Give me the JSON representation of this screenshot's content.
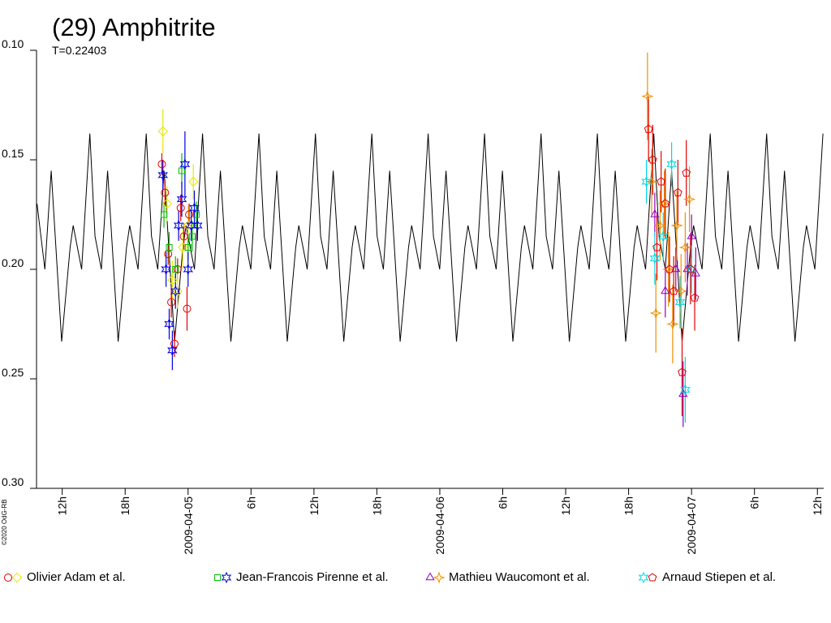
{
  "chart_data": {
    "type": "lightcurve",
    "title": "(29) Amphitrite",
    "subtitle": "T=0.22403",
    "copyright": "©2020 OdG-RB",
    "xlim": [
      -14.45,
      60.6
    ],
    "ylim": [
      0.1,
      0.3
    ],
    "y_inverted": true,
    "yticks": [
      {
        "value": 0.1,
        "label": "0.10"
      },
      0.15,
      {
        "value": 0.2,
        "label": "0.20"
      },
      0.25,
      {
        "value": 0.3,
        "label": "0.30"
      }
    ],
    "xticks": [
      {
        "value": -12,
        "label": "12h"
      },
      {
        "value": -6,
        "label": "18h"
      },
      {
        "value": 0,
        "label": "2009-04-05"
      },
      {
        "value": 6,
        "label": "6h"
      },
      {
        "value": 12,
        "label": "12h"
      },
      {
        "value": 18,
        "label": "18h"
      },
      {
        "value": 24,
        "label": "2009-04-06"
      },
      {
        "value": 30,
        "label": "6h"
      },
      {
        "value": 36,
        "label": "12h"
      },
      {
        "value": 42,
        "label": "18h"
      },
      {
        "value": 48,
        "label": "2009-04-07"
      },
      {
        "value": 54,
        "label": "6h"
      },
      {
        "value": 60,
        "label": "12h"
      }
    ],
    "model": {
      "color": "#000000",
      "x": [
        -14.4,
        -13.65,
        -13.05,
        -12.05,
        -11.25,
        -10.95,
        -10.15,
        -9.37,
        -8.87,
        -8.27,
        -7.67,
        -6.67,
        -5.87,
        -5.57,
        -4.77,
        -3.99,
        -3.49,
        -2.89,
        -2.29,
        -1.29,
        -0.49,
        -0.19,
        0.61,
        1.38,
        1.88,
        2.48,
        3.08,
        4.08,
        4.88,
        5.18,
        5.98,
        6.76,
        7.26,
        7.86,
        8.46,
        9.46,
        10.26,
        10.56,
        11.36,
        12.14,
        12.64,
        13.24,
        13.84,
        14.84,
        15.64,
        15.94,
        16.74,
        17.52,
        18.02,
        18.62,
        19.22,
        20.22,
        21.02,
        21.32,
        22.12,
        22.89,
        23.39,
        23.99,
        24.59,
        25.59,
        26.39,
        26.69,
        27.49,
        28.27,
        28.77,
        29.37,
        29.97,
        30.97,
        31.77,
        32.07,
        32.87,
        33.65,
        34.15,
        34.75,
        35.35,
        36.35,
        37.15,
        37.45,
        38.25,
        39.02,
        39.52,
        40.12,
        40.72,
        41.72,
        42.52,
        42.82,
        43.62,
        44.4,
        44.9,
        45.5,
        46.1,
        47.1,
        47.9,
        48.2,
        49.0,
        49.78,
        50.28,
        50.88,
        51.48,
        52.48,
        53.28,
        53.58,
        54.38,
        55.16,
        55.66,
        56.26,
        56.86,
        57.86,
        58.66,
        58.96,
        59.76,
        60.53
      ],
      "values": [
        0.17,
        0.2,
        0.155,
        0.233,
        0.19,
        0.18,
        0.2,
        0.138,
        0.185,
        0.2,
        0.155,
        0.233,
        0.19,
        0.18,
        0.2,
        0.138,
        0.185,
        0.2,
        0.155,
        0.233,
        0.19,
        0.18,
        0.2,
        0.138,
        0.185,
        0.2,
        0.155,
        0.233,
        0.19,
        0.18,
        0.2,
        0.138,
        0.185,
        0.2,
        0.155,
        0.233,
        0.19,
        0.18,
        0.2,
        0.138,
        0.185,
        0.2,
        0.155,
        0.233,
        0.19,
        0.18,
        0.2,
        0.138,
        0.185,
        0.2,
        0.155,
        0.233,
        0.19,
        0.18,
        0.2,
        0.138,
        0.185,
        0.2,
        0.155,
        0.233,
        0.19,
        0.18,
        0.2,
        0.138,
        0.185,
        0.2,
        0.155,
        0.233,
        0.19,
        0.18,
        0.2,
        0.138,
        0.185,
        0.2,
        0.155,
        0.233,
        0.19,
        0.18,
        0.2,
        0.138,
        0.185,
        0.2,
        0.155,
        0.233,
        0.19,
        0.18,
        0.2,
        0.138,
        0.185,
        0.2,
        0.155,
        0.233,
        0.19,
        0.18,
        0.2,
        0.138,
        0.185,
        0.2,
        0.155,
        0.233,
        0.19,
        0.18,
        0.2,
        0.138,
        0.185,
        0.2,
        0.155,
        0.233,
        0.19,
        0.18,
        0.2,
        0.138
      ]
    },
    "series": [
      {
        "name": "Olivier Adam et al.",
        "markers": [
          {
            "symbol": "circle",
            "color": "#e00000",
            "x": [
              -2.5,
              -2.2,
              -1.9,
              -1.6,
              -1.3,
              -1.0,
              -0.7,
              -0.4,
              -0.1,
              0.1
            ],
            "values": [
              0.152,
              0.165,
              0.193,
              0.215,
              0.234,
              0.2,
              0.172,
              0.185,
              0.218,
              0.175
            ],
            "errors": [
              0.005,
              0.006,
              0.005,
              0.007,
              0.006,
              0.005,
              0.006,
              0.006,
              0.01,
              0.005
            ]
          },
          {
            "symbol": "diamond",
            "color": "#e8e800",
            "x": [
              -2.4,
              -2.0,
              -1.5,
              -1.0,
              -0.5,
              0.0,
              0.5
            ],
            "values": [
              0.137,
              0.17,
              0.205,
              0.21,
              0.19,
              0.18,
              0.16
            ],
            "errors": [
              0.01,
              0.008,
              0.009,
              0.008,
              0.01,
              0.009,
              0.008
            ]
          }
        ]
      },
      {
        "name": "Jean-Francois Pirenne et al.",
        "markers": [
          {
            "symbol": "square",
            "color": "#00c000",
            "x": [
              -2.3,
              -1.8,
              -1.2,
              -0.6,
              0.0,
              0.4,
              0.8
            ],
            "values": [
              0.175,
              0.19,
              0.2,
              0.155,
              0.19,
              0.185,
              0.175
            ],
            "errors": [
              0.006,
              0.007,
              0.006,
              0.008,
              0.006,
              0.007,
              0.006
            ]
          },
          {
            "symbol": "star",
            "color": "#0000e0",
            "x": [
              -2.4,
              -2.1,
              -1.8,
              -1.5,
              -1.2,
              -0.9,
              -0.6,
              -0.3,
              0.0,
              0.3,
              0.6,
              0.9
            ],
            "values": [
              0.157,
              0.2,
              0.225,
              0.237,
              0.21,
              0.18,
              0.168,
              0.152,
              0.2,
              0.18,
              0.172,
              0.18
            ],
            "errors": [
              0.007,
              0.008,
              0.007,
              0.009,
              0.008,
              0.007,
              0.008,
              0.015,
              0.008,
              0.007,
              0.008,
              0.007
            ]
          }
        ]
      },
      {
        "name": "Mathieu Waucomont et al.",
        "markers": [
          {
            "symbol": "triangle",
            "color": "#9000c0",
            "x": [
              44.5,
              45.5,
              46.5,
              47.2,
              47.6,
              48.0,
              48.4
            ],
            "values": [
              0.175,
              0.21,
              0.2,
              0.257,
              0.2,
              0.185,
              0.202
            ],
            "errors": [
              0.01,
              0.012,
              0.01,
              0.015,
              0.012,
              0.01,
              0.012
            ]
          },
          {
            "symbol": "cross",
            "color": "#f09000",
            "x": [
              43.8,
              44.2,
              44.6,
              45.0,
              45.4,
              45.8,
              46.2,
              46.6,
              47.0,
              47.4,
              47.8
            ],
            "values": [
              0.121,
              0.16,
              0.22,
              0.18,
              0.17,
              0.2,
              0.225,
              0.18,
              0.21,
              0.19,
              0.168
            ],
            "errors": [
              0.02,
              0.015,
              0.018,
              0.016,
              0.015,
              0.017,
              0.018,
              0.016,
              0.017,
              0.016,
              0.015
            ]
          }
        ]
      },
      {
        "name": "Arnaud Stiepen et al.",
        "markers": [
          {
            "symbol": "star",
            "color": "#00d8e8",
            "x": [
              43.7,
              44.5,
              45.3,
              46.1,
              46.9,
              47.4,
              48.0
            ],
            "values": [
              0.16,
              0.195,
              0.185,
              0.152,
              0.215,
              0.255,
              0.2
            ],
            "errors": [
              0.01,
              0.012,
              0.011,
              0.01,
              0.012,
              0.015,
              0.011
            ]
          },
          {
            "symbol": "pentagon",
            "color": "#e00000",
            "x": [
              43.9,
              44.3,
              44.7,
              45.1,
              45.5,
              45.9,
              46.3,
              46.7,
              47.1,
              47.5,
              47.9,
              48.3
            ],
            "values": [
              0.136,
              0.15,
              0.19,
              0.16,
              0.17,
              0.2,
              0.21,
              0.165,
              0.247,
              0.156,
              0.2,
              0.213
            ],
            "errors": [
              0.015,
              0.016,
              0.015,
              0.014,
              0.016,
              0.015,
              0.016,
              0.015,
              0.02,
              0.015,
              0.016,
              0.015
            ]
          }
        ]
      }
    ]
  }
}
